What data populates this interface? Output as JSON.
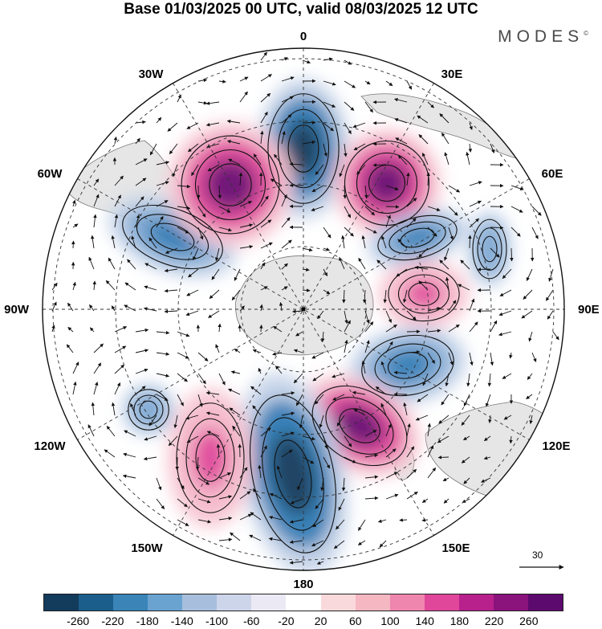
{
  "title": "Base 01/03/2025 00 UTC, valid 08/03/2025 12 UTC",
  "brand": "MODES",
  "brand_mark": "©",
  "longitude_labels": {
    "n0": "0",
    "n30e": "30E",
    "n60e": "60E",
    "n90e": "90E",
    "n120e": "120E",
    "n150e": "150E",
    "n180": "180",
    "n150w": "150W",
    "n120w": "120W",
    "n90w": "90W",
    "n60w": "60W",
    "n30w": "30W"
  },
  "reference_vector_label": "30",
  "colorbar": {
    "colors": [
      "#123b5c",
      "#1b5e8c",
      "#3a84b8",
      "#6aa3cf",
      "#a7bfdc",
      "#cdd5ea",
      "#ebe9f3",
      "#ffffff",
      "#f9d9dc",
      "#f5b7c2",
      "#ef86ae",
      "#e0479a",
      "#b8208c",
      "#8a137c",
      "#5c0a6e"
    ],
    "tick_labels": [
      "-260",
      "-220",
      "-180",
      "-140",
      "-100",
      "-60",
      "-20",
      "20",
      "60",
      "100",
      "140",
      "180",
      "220",
      "260"
    ]
  },
  "anomaly_centers": [
    {
      "name": "negative-0E",
      "sign": "negative",
      "strength": 3
    },
    {
      "name": "positive-40E",
      "sign": "positive",
      "strength": 3
    },
    {
      "name": "negative-65E",
      "sign": "negative",
      "strength": 2
    },
    {
      "name": "positive-95E",
      "sign": "positive",
      "strength": 2
    },
    {
      "name": "negative-110E",
      "sign": "negative",
      "strength": 2
    },
    {
      "name": "positive-145E",
      "sign": "positive",
      "strength": 3
    },
    {
      "name": "negative-175E",
      "sign": "negative",
      "strength": 3
    },
    {
      "name": "positive-140W",
      "sign": "positive",
      "strength": 2
    },
    {
      "name": "negative-120W",
      "sign": "negative",
      "strength": 1
    },
    {
      "name": "negative-60W",
      "sign": "negative",
      "strength": 2
    },
    {
      "name": "positive-35W",
      "sign": "positive",
      "strength": 3
    },
    {
      "name": "negative-75E",
      "sign": "negative",
      "strength": 1
    }
  ]
}
